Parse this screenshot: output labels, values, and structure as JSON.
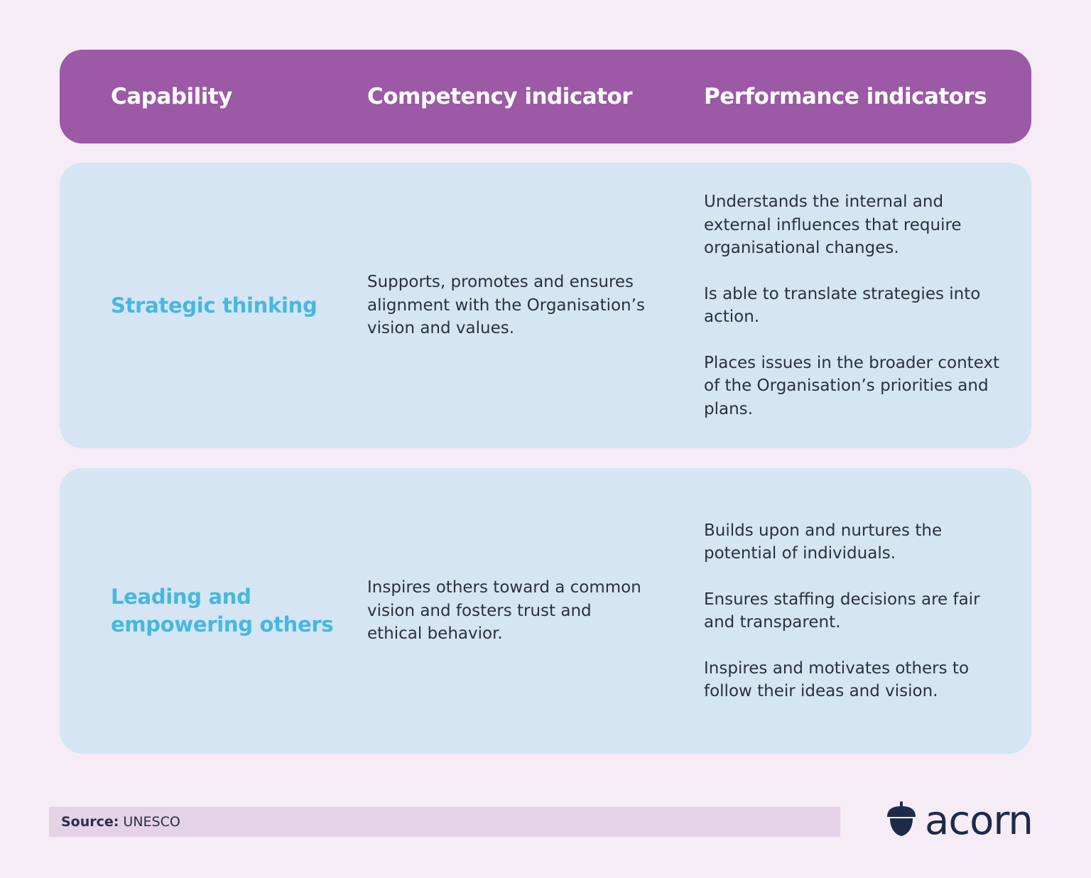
{
  "header": {
    "capability": "Capability",
    "competency": "Competency indicator",
    "performance": "Performance indicators"
  },
  "rows": [
    {
      "capability_lines": [
        "Strategic thinking"
      ],
      "competency_lines": [
        "Supports, promotes and ensures",
        "alignment with the Organisation’s",
        "vision and values."
      ],
      "performance": [
        "Understands the internal and external influences that require organisational changes.",
        "Is able to translate strategies into action.",
        "Places issues in the broader context of the Organisation’s priorities and plans."
      ]
    },
    {
      "capability_lines": [
        "Leading and",
        "empowering others"
      ],
      "competency_lines": [
        "Inspires others toward a common",
        "vision and fosters trust and",
        "ethical behavior."
      ],
      "performance": [
        "Builds upon and nurtures the potential of individuals.",
        "Ensures staffing decisions are fair and transparent.",
        "Inspires and motivates others to follow their ideas and vision."
      ]
    }
  ],
  "source": {
    "label": "Source:",
    "value": "UNESCO"
  },
  "logo": {
    "icon": "acorn-icon",
    "text": "acorn"
  },
  "colors": {
    "background": "#f5ecf5",
    "header": "#9b59a6",
    "row": "#d5e5f3",
    "capability_text": "#45b8e0",
    "body_text": "#2b2f45",
    "source_bar": "#e4d2e7",
    "logo": "#1e2a4a"
  }
}
